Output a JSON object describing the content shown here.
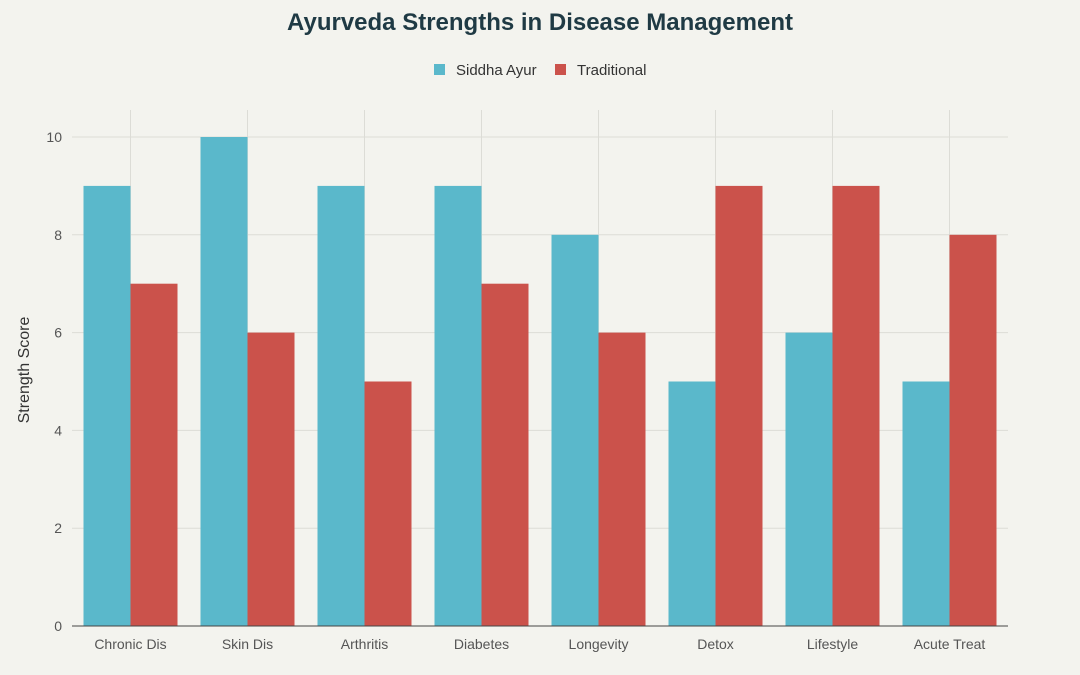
{
  "chart_data": {
    "type": "bar",
    "title": "Ayurveda Strengths in Disease Management",
    "xlabel": "",
    "ylabel": "Strength Score",
    "categories": [
      "Chronic Dis",
      "Skin Dis",
      "Arthritis",
      "Diabetes",
      "Longevity",
      "Detox",
      "Lifestyle",
      "Acute Treat"
    ],
    "series": [
      {
        "name": "Siddha Ayur",
        "color": "#5ab8cb",
        "values": [
          9,
          10,
          9,
          9,
          8,
          5,
          6,
          5
        ]
      },
      {
        "name": "Traditional",
        "color": "#cb524b",
        "values": [
          7,
          6,
          5,
          7,
          6,
          9,
          9,
          8
        ]
      }
    ],
    "ylim": [
      0,
      10
    ],
    "yticks": [
      0,
      2,
      4,
      6,
      8,
      10
    ],
    "grid": true,
    "legend": "top-center"
  }
}
